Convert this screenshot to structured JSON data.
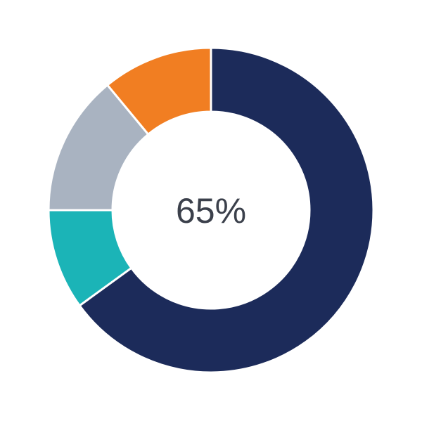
{
  "chart_data": {
    "type": "pie",
    "variant": "donut",
    "center_label": "65%",
    "start_angle": "12 o'clock",
    "direction": "clockwise",
    "slices": [
      {
        "value": 65,
        "color": "#1c2b5a"
      },
      {
        "value": 10,
        "color": "#1bb4b7"
      },
      {
        "value": 14,
        "color": "#a9b3c1"
      },
      {
        "value": 11,
        "color": "#f17e22"
      }
    ]
  }
}
